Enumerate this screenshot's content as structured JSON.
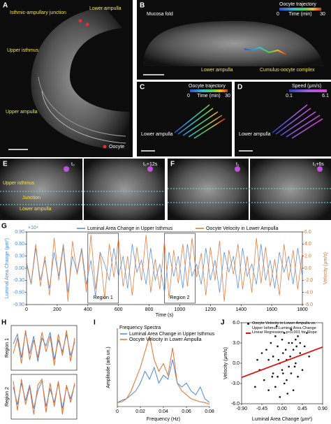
{
  "figure_panels": {
    "A": {
      "letter": "A",
      "labels": [
        "Isthmic-ampullary junction",
        "Lower ampulla",
        "Upper isthmus",
        "Upper ampulla",
        "Oocyte"
      ]
    },
    "B": {
      "letter": "B",
      "labels": [
        "Mucosa fold",
        "Lower ampulla",
        "Cumulus-oocyte complex"
      ],
      "colorbar": {
        "title": "Oocyte trajectory",
        "min": 0,
        "label": "Time (min)",
        "max": 30
      }
    },
    "C": {
      "letter": "C",
      "labels": [
        "Lower ampulla"
      ],
      "colorbar": {
        "title": "Oocyte trajectory",
        "min": 0,
        "label": "Time (min)",
        "max": 30
      }
    },
    "D": {
      "letter": "D",
      "labels": [
        "Lower ampulla"
      ],
      "colorbar": {
        "title": "Speed (μm/s)",
        "min": 0.1,
        "max": 6.1
      }
    },
    "E": {
      "letter": "E",
      "frames": [
        "t₀",
        "t₀+12s"
      ],
      "labels": [
        "Upper isthmus",
        "Junction",
        "Lower ampulla"
      ]
    },
    "F": {
      "letter": "F",
      "frames": [
        "t₁",
        "t₁+6s"
      ]
    }
  },
  "chart_data": [
    {
      "type": "line",
      "letter": "G",
      "multiplier": "×10⁴",
      "ylabel": "Luminal Area Change (μm²)",
      "y2label": "Velocity (μm/s)",
      "xlabel": "Time (s)",
      "xlim": [
        0,
        1800
      ],
      "xticks": [
        0,
        200,
        400,
        600,
        800,
        1000,
        1200,
        1400,
        1600,
        1800
      ],
      "ylim": [
        -0.9,
        0.9
      ],
      "yticks": [
        {
          "value": -0.9,
          "label": "-0.90"
        },
        {
          "value": -0.6,
          "label": "-0.60"
        },
        {
          "value": -0.3,
          "label": "-0.30"
        },
        {
          "value": 0,
          "label": "0.00"
        },
        {
          "value": 0.3,
          "label": "0.30"
        },
        {
          "value": 0.6,
          "label": "0.60"
        },
        {
          "value": 0.9,
          "label": "0.90"
        }
      ],
      "y2lim": [
        -6,
        6
      ],
      "y2ticks": [
        {
          "value": -6,
          "label": "-6.0"
        },
        {
          "value": -4,
          "label": "-4.0"
        },
        {
          "value": -2,
          "label": "-2.0"
        },
        {
          "value": 0,
          "label": "0.0"
        },
        {
          "value": 2,
          "label": "2.0"
        },
        {
          "value": 4,
          "label": "4.0"
        },
        {
          "value": 6,
          "label": "6.0"
        }
      ],
      "regions": [
        {
          "label": "Region 1",
          "xlim": [
            400,
            600
          ]
        },
        {
          "label": "Region 2",
          "xlim": [
            900,
            1100
          ]
        }
      ],
      "x": [
        0,
        30,
        60,
        90,
        120,
        150,
        180,
        210,
        240,
        270,
        300,
        330,
        360,
        390,
        420,
        450,
        480,
        510,
        540,
        570,
        600,
        630,
        660,
        690,
        720,
        750,
        780,
        810,
        840,
        870,
        900,
        930,
        960,
        990,
        1020,
        1050,
        1080,
        1110,
        1140,
        1170,
        1200,
        1230,
        1260,
        1290,
        1320,
        1350,
        1380,
        1410,
        1440,
        1470,
        1500,
        1530,
        1560,
        1590,
        1620,
        1650,
        1680,
        1710,
        1740,
        1770,
        1800
      ],
      "series": [
        {
          "name": "Luminal Area Change in Upper Isthmus",
          "color": "#4a86e0",
          "values": [
            0.1,
            -0.4,
            0.5,
            -0.3,
            0.2,
            -0.5,
            0.4,
            -0.2,
            0.6,
            -0.6,
            0.3,
            -0.1,
            0.5,
            -0.4,
            0.2,
            -0.7,
            0.4,
            0.1,
            -0.3,
            0.5,
            -0.2,
            0.3,
            -0.5,
            0.6,
            -0.1,
            0.2,
            -0.4,
            0.5,
            -0.3,
            0.1,
            -0.6,
            0.4,
            -0.2,
            0.3,
            -0.5,
            0.6,
            -0.2,
            0.1,
            -0.4,
            0.5,
            -0.3,
            0.2,
            -0.6,
            0.4,
            -0.1,
            0.3,
            -0.5,
            0.5,
            -0.2,
            0.1,
            -0.4,
            0.6,
            -0.3,
            0.2,
            -0.5,
            0.4,
            -0.1,
            0.3,
            -0.4,
            0.5,
            -0.2
          ]
        },
        {
          "name": "Oocyte Velocity in Lower Ampulla",
          "color": "#e0702a",
          "axis": "y2",
          "values": [
            1.0,
            -2.5,
            4.0,
            -3.0,
            2.0,
            -4.5,
            5.0,
            -2.0,
            3.5,
            -5.5,
            4.5,
            -1.0,
            3.0,
            -4.0,
            5.5,
            -3.5,
            2.5,
            -5.0,
            4.0,
            -1.5,
            5.0,
            -3.0,
            2.0,
            -4.5,
            3.5,
            -2.0,
            5.5,
            -4.0,
            1.5,
            -3.5,
            4.5,
            -5.0,
            3.0,
            -2.5,
            4.0,
            -3.0,
            5.0,
            -1.5,
            2.5,
            -4.5,
            3.5,
            -2.0,
            4.5,
            -5.5,
            3.0,
            -1.0,
            4.0,
            -3.5,
            2.0,
            -4.0,
            5.0,
            -2.5,
            3.5,
            -3.0,
            1.5,
            -4.5,
            4.0,
            -2.0,
            3.0,
            -3.5,
            2.5
          ]
        }
      ]
    },
    {
      "type": "line",
      "letter": "H",
      "ylim": [
        -1,
        1
      ],
      "panels": [
        {
          "label": "Region 1",
          "series": [
            {
              "color": "#4a86e0",
              "values": [
                0.2,
                0.7,
                -0.5,
                0.8,
                -0.3,
                0.6,
                -0.7,
                0.5,
                0.1,
                0.8,
                -0.6,
                0.4,
                -0.2,
                0.7,
                -0.4,
                0.3
              ]
            },
            {
              "color": "#e0702a",
              "values": [
                -0.3,
                0.5,
                -0.8,
                0.9,
                -0.6,
                0.4,
                -0.5,
                0.8,
                -0.2,
                0.6,
                -0.9,
                0.7,
                -0.4,
                0.9,
                -0.7,
                0.5
              ]
            }
          ]
        },
        {
          "label": "Region 2",
          "series": [
            {
              "color": "#4a86e0",
              "values": [
                0.5,
                -0.4,
                0.7,
                -0.2,
                0.6,
                -0.6,
                0.3,
                0.8,
                -0.5,
                0.4,
                -0.3,
                0.7,
                -0.6,
                0.5,
                -0.1,
                0.6
              ]
            },
            {
              "color": "#e0702a",
              "values": [
                0.8,
                -0.7,
                0.9,
                -0.4,
                0.5,
                -0.9,
                0.6,
                0.9,
                -0.8,
                0.7,
                -0.5,
                0.8,
                -0.9,
                0.6,
                -0.3,
                0.7
              ]
            }
          ]
        }
      ]
    },
    {
      "type": "line",
      "letter": "I",
      "title": "Frequency Spectra",
      "ylabel": "Amplitude (arb.un.)",
      "xlabel": "Frequency (Hz)",
      "xlim": [
        0,
        0.08
      ],
      "xticks": [
        0,
        0.02,
        0.04,
        0.06,
        0.08
      ],
      "ylim": [
        0,
        1
      ],
      "x": [
        0,
        0.004,
        0.008,
        0.012,
        0.016,
        0.02,
        0.024,
        0.028,
        0.032,
        0.036,
        0.04,
        0.044,
        0.048,
        0.052,
        0.056,
        0.06,
        0.064,
        0.068,
        0.072,
        0.076,
        0.08
      ],
      "series": [
        {
          "name": "Luminal Area Change in Upper Isthmus",
          "color": "#4a86e0",
          "values": [
            0.05,
            0.08,
            0.1,
            0.15,
            0.2,
            0.3,
            0.45,
            0.35,
            0.5,
            0.3,
            0.4,
            0.35,
            0.6,
            0.3,
            0.25,
            0.3,
            0.2,
            0.15,
            0.25,
            0.1,
            0.05
          ]
        },
        {
          "name": "Oocyte Velocity in Lower Ampulla",
          "color": "#e0702a",
          "values": [
            0.05,
            0.06,
            0.1,
            0.2,
            0.35,
            0.5,
            0.7,
            0.9,
            0.6,
            0.45,
            0.55,
            0.4,
            0.75,
            0.3,
            0.2,
            0.15,
            0.1,
            0.08,
            0.06,
            0.05,
            0.03
          ]
        }
      ]
    },
    {
      "type": "scatter",
      "letter": "J",
      "ylabel": "Velocity (μm/s)",
      "xlabel": "Luminal Area Change (μm²)",
      "xlim": [
        -0.9,
        0.9
      ],
      "xticks": [
        {
          "value": -0.9,
          "label": "-0.90"
        },
        {
          "value": -0.45,
          "label": "-0.45"
        },
        {
          "value": 0,
          "label": "0.00"
        },
        {
          "value": 0.45,
          "label": "0.45"
        },
        {
          "value": 0.9,
          "label": "0.90"
        }
      ],
      "ylim": [
        -6,
        6
      ],
      "yticks": [
        {
          "value": -6,
          "label": "-6.0"
        },
        {
          "value": -3,
          "label": "-3.0"
        },
        {
          "value": 0,
          "label": "0.0"
        },
        {
          "value": 3,
          "label": "3.0"
        },
        {
          "value": 6,
          "label": "6.0"
        }
      ],
      "series": [
        {
          "name": "Oocyte Velocity in Lower Ampulla vs. Upper Isthmus Luminal Area Change",
          "color": "#111111",
          "x": [
            -0.6,
            -0.5,
            -0.45,
            -0.4,
            -0.35,
            -0.3,
            -0.3,
            -0.25,
            -0.2,
            -0.2,
            -0.15,
            -0.1,
            -0.1,
            -0.05,
            -0.05,
            0,
            0,
            0.02,
            0.05,
            0.05,
            0.1,
            0.1,
            0.15,
            0.15,
            0.2,
            0.2,
            0.25,
            0.25,
            0.3,
            0.3,
            0.35,
            0.35,
            0.4,
            0.4,
            0.45,
            0.5,
            0.55,
            0.6,
            -0.55,
            -0.15,
            0.08,
            0.12,
            0.18,
            -0.08,
            0.22,
            0.28,
            -0.22,
            0.32,
            0.02,
            -0.12
          ],
          "values": [
            -3.5,
            -1.0,
            1.5,
            -2.5,
            2.0,
            0.5,
            -4.0,
            3.0,
            -1.5,
            1.0,
            4.0,
            -2.0,
            2.5,
            -5.0,
            0.0,
            3.5,
            -1.0,
            1.5,
            -3.0,
            4.5,
            0.5,
            -2.5,
            3.0,
            -0.5,
            5.0,
            -1.5,
            2.0,
            -4.0,
            3.5,
            0.0,
            4.0,
            -2.0,
            1.5,
            3.0,
            -1.0,
            2.5,
            4.5,
            1.0,
            0.5,
            -3.5,
            2.0,
            -4.5,
            1.0,
            0.5,
            3.0,
            -0.5,
            -2.0,
            2.5,
            -1.5,
            5.5
          ]
        },
        {
          "name": "Linear Regression, p<0.001 for Slope",
          "color": "#e01010",
          "style": "line",
          "x": [
            -0.9,
            0.9
          ],
          "values": [
            -2.1,
            2.4
          ]
        }
      ]
    }
  ]
}
